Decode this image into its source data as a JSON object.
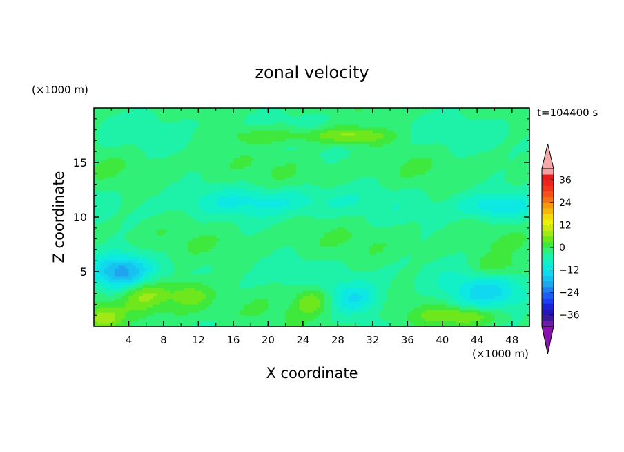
{
  "chart_data": {
    "type": "heatmap",
    "title": "zonal velocity",
    "xlabel": "X coordinate",
    "ylabel": "Z coordinate",
    "x_unit": "(×1000 m)",
    "y_unit": "(×1000 m)",
    "time_label": "t=104400 s",
    "xlim": [
      0,
      50
    ],
    "ylim": [
      0,
      20
    ],
    "x_ticks": [
      4,
      8,
      12,
      16,
      20,
      24,
      28,
      32,
      36,
      40,
      44,
      48
    ],
    "y_ticks": [
      5,
      10,
      15
    ],
    "colorbar": {
      "levels": [
        -42,
        -39,
        -36,
        -33,
        -30,
        -27,
        -24,
        -21,
        -18,
        -15,
        -12,
        -9,
        -6,
        -3,
        0,
        3,
        6,
        9,
        12,
        15,
        18,
        21,
        24,
        27,
        30,
        33,
        36,
        39,
        42
      ],
      "colors": [
        "#6a1ea6",
        "#3a1a9a",
        "#2416b8",
        "#1a24d6",
        "#1a3ef0",
        "#1c5cf0",
        "#1e80ee",
        "#20a4ee",
        "#18c2ee",
        "#10d8ee",
        "#0ee8e2",
        "#12f0c8",
        "#1ef2a8",
        "#30f078",
        "#3ee83c",
        "#6ee81c",
        "#a0e816",
        "#cce80e",
        "#eaf00a",
        "#f2d80c",
        "#f4b80c",
        "#f49810",
        "#f47414",
        "#f45218",
        "#f0381c",
        "#ec2420",
        "#e81a1c",
        "#f4a0a0"
      ],
      "under_color": "#8a10b0",
      "over_color": "#f4a8a8",
      "tick_labels": [
        {
          "value": 36,
          "label": "36"
        },
        {
          "value": 24,
          "label": "24"
        },
        {
          "value": 12,
          "label": "12"
        },
        {
          "value": 0,
          "label": "0"
        },
        {
          "value": -12,
          "label": "−12"
        },
        {
          "value": -24,
          "label": "−24"
        },
        {
          "value": -36,
          "label": "−36"
        }
      ]
    },
    "field_description_features": [
      {
        "x": 3,
        "z": 5,
        "amp": -16,
        "sx": 3.2,
        "sz": 1.6
      },
      {
        "x": 6,
        "z": 3,
        "amp": 10,
        "sx": 3,
        "sz": 1.4
      },
      {
        "x": 11,
        "z": 3,
        "amp": 8,
        "sx": 2.5,
        "sz": 1.4
      },
      {
        "x": 30,
        "z": 2.5,
        "amp": -9,
        "sx": 3,
        "sz": 1.5
      },
      {
        "x": 25,
        "z": 2.5,
        "amp": 8,
        "sx": 2,
        "sz": 1.3
      },
      {
        "x": 45,
        "z": 3,
        "amp": -10,
        "sx": 4.5,
        "sz": 1.5
      },
      {
        "x": 46,
        "z": 5.5,
        "amp": 5,
        "sx": 3,
        "sz": 1
      },
      {
        "x": 22,
        "z": 17.5,
        "amp": 6,
        "sx": 8,
        "sz": 0.8
      },
      {
        "x": 30,
        "z": 17.5,
        "amp": 8,
        "sx": 4,
        "sz": 0.8
      },
      {
        "x": 46,
        "z": 11,
        "amp": -8,
        "sx": 4,
        "sz": 1.2
      },
      {
        "x": 20,
        "z": 11.5,
        "amp": -6,
        "sx": 8,
        "sz": 1.2
      },
      {
        "x": 42,
        "z": 1,
        "amp": 8,
        "sx": 4,
        "sz": 0.8
      },
      {
        "x": 1,
        "z": 0.8,
        "amp": 9,
        "sx": 2,
        "sz": 1
      }
    ]
  }
}
